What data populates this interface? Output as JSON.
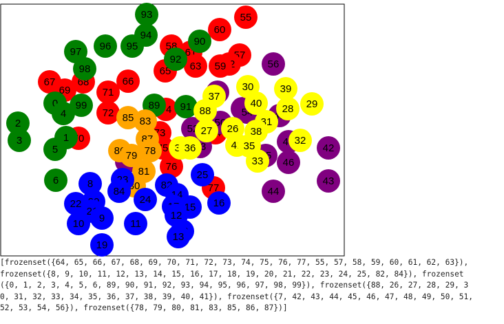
{
  "colors": {
    "red": "#ff0000",
    "blue": "#0000ff",
    "green": "#008000",
    "yellow": "#ffff00",
    "purple": "#800080",
    "orange": "#ffa500"
  },
  "nodes": [
    {
      "id": "55",
      "c": "red"
    },
    {
      "id": "60",
      "c": "red"
    },
    {
      "id": "61",
      "c": "red"
    },
    {
      "id": "58",
      "c": "red"
    },
    {
      "id": "57",
      "c": "red"
    },
    {
      "id": "62",
      "c": "red"
    },
    {
      "id": "59",
      "c": "red"
    },
    {
      "id": "63",
      "c": "red"
    },
    {
      "id": "65",
      "c": "red"
    },
    {
      "id": "67",
      "c": "red"
    },
    {
      "id": "69",
      "c": "red"
    },
    {
      "id": "68",
      "c": "red"
    },
    {
      "id": "66",
      "c": "red"
    },
    {
      "id": "71",
      "c": "red"
    },
    {
      "id": "72",
      "c": "red"
    },
    {
      "id": "70",
      "c": "red"
    },
    {
      "id": "74",
      "c": "red"
    },
    {
      "id": "73",
      "c": "red"
    },
    {
      "id": "75",
      "c": "red"
    },
    {
      "id": "64",
      "c": "red"
    },
    {
      "id": "76",
      "c": "red"
    },
    {
      "id": "77",
      "c": "red"
    },
    {
      "id": "93",
      "c": "green"
    },
    {
      "id": "94",
      "c": "green"
    },
    {
      "id": "96",
      "c": "green"
    },
    {
      "id": "95",
      "c": "green"
    },
    {
      "id": "90",
      "c": "green"
    },
    {
      "id": "97",
      "c": "green"
    },
    {
      "id": "92",
      "c": "green"
    },
    {
      "id": "98",
      "c": "green"
    },
    {
      "id": "0",
      "c": "green"
    },
    {
      "id": "4",
      "c": "green"
    },
    {
      "id": "99",
      "c": "green"
    },
    {
      "id": "89",
      "c": "green"
    },
    {
      "id": "91",
      "c": "green"
    },
    {
      "id": "2",
      "c": "green"
    },
    {
      "id": "3",
      "c": "green"
    },
    {
      "id": "1",
      "c": "green"
    },
    {
      "id": "5",
      "c": "green"
    },
    {
      "id": "6",
      "c": "green"
    },
    {
      "id": "56",
      "c": "purple"
    },
    {
      "id": "51",
      "c": "purple"
    },
    {
      "id": "48",
      "c": "purple"
    },
    {
      "id": "54",
      "c": "purple"
    },
    {
      "id": "49",
      "c": "purple"
    },
    {
      "id": "52",
      "c": "purple"
    },
    {
      "id": "50",
      "c": "purple"
    },
    {
      "id": "53",
      "c": "purple"
    },
    {
      "id": "47",
      "c": "purple"
    },
    {
      "id": "42",
      "c": "purple"
    },
    {
      "id": "45",
      "c": "purple"
    },
    {
      "id": "46",
      "c": "purple"
    },
    {
      "id": "43",
      "c": "purple"
    },
    {
      "id": "44",
      "c": "purple"
    },
    {
      "id": "7",
      "c": "purple"
    },
    {
      "id": "30",
      "c": "yellow"
    },
    {
      "id": "39",
      "c": "yellow"
    },
    {
      "id": "29",
      "c": "yellow"
    },
    {
      "id": "37",
      "c": "yellow"
    },
    {
      "id": "40",
      "c": "yellow"
    },
    {
      "id": "28",
      "c": "yellow"
    },
    {
      "id": "88",
      "c": "yellow"
    },
    {
      "id": "31",
      "c": "yellow"
    },
    {
      "id": "26",
      "c": "yellow"
    },
    {
      "id": "27",
      "c": "yellow"
    },
    {
      "id": "38",
      "c": "yellow"
    },
    {
      "id": "32",
      "c": "yellow"
    },
    {
      "id": "41",
      "c": "yellow"
    },
    {
      "id": "35",
      "c": "yellow"
    },
    {
      "id": "34",
      "c": "yellow"
    },
    {
      "id": "36",
      "c": "yellow"
    },
    {
      "id": "33",
      "c": "yellow"
    },
    {
      "id": "85",
      "c": "orange"
    },
    {
      "id": "83",
      "c": "orange"
    },
    {
      "id": "87",
      "c": "orange"
    },
    {
      "id": "86",
      "c": "orange"
    },
    {
      "id": "79",
      "c": "orange"
    },
    {
      "id": "78",
      "c": "orange"
    },
    {
      "id": "81",
      "c": "orange"
    },
    {
      "id": "80",
      "c": "orange"
    },
    {
      "id": "8",
      "c": "blue"
    },
    {
      "id": "23",
      "c": "blue"
    },
    {
      "id": "84",
      "c": "blue"
    },
    {
      "id": "82",
      "c": "blue"
    },
    {
      "id": "25",
      "c": "blue"
    },
    {
      "id": "14",
      "c": "blue"
    },
    {
      "id": "24",
      "c": "blue"
    },
    {
      "id": "22",
      "c": "blue"
    },
    {
      "id": "20",
      "c": "blue"
    },
    {
      "id": "21",
      "c": "blue"
    },
    {
      "id": "9",
      "c": "blue"
    },
    {
      "id": "17",
      "c": "blue"
    },
    {
      "id": "15",
      "c": "blue"
    },
    {
      "id": "16",
      "c": "blue"
    },
    {
      "id": "12",
      "c": "blue"
    },
    {
      "id": "10",
      "c": "blue"
    },
    {
      "id": "11",
      "c": "blue"
    },
    {
      "id": "18",
      "c": "blue"
    },
    {
      "id": "13",
      "c": "blue"
    },
    {
      "id": "19",
      "c": "blue"
    }
  ],
  "output_lines": [
    "[frozenset({64, 65, 66, 67, 68, 69, 70, 71, 72, 73, 74, 75, 76, 77, 55, 57, 58, 59, 60, 61, 62, 63}),",
    "frozenset({8, 9, 10, 11, 12, 13, 14, 15, 16, 17, 18, 19, 20, 21, 22, 23, 24, 25, 82, 84}), frozenset",
    "({0, 1, 2, 3, 4, 5, 6, 89, 90, 91, 92, 93, 94, 95, 96, 97, 98, 99}), frozenset({88, 26, 27, 28, 29, 3",
    "0, 31, 32, 33, 34, 35, 36, 37, 38, 39, 40, 41}), frozenset({7, 42, 43, 44, 45, 46, 47, 48, 49, 50, 51,",
    "52, 53, 54, 56}), frozenset({78, 79, 80, 81, 83, 85, 86, 87})]"
  ]
}
